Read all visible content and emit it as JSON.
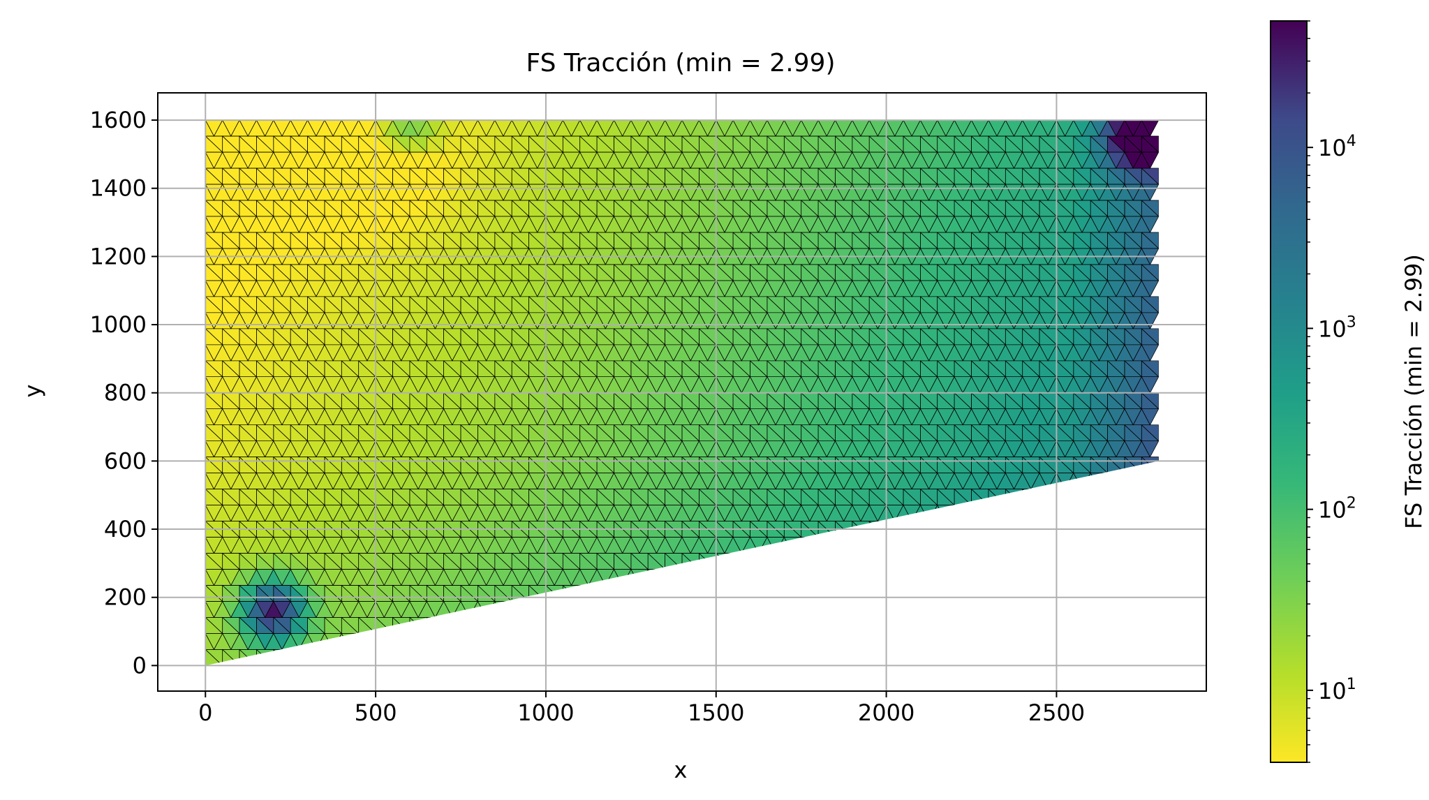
{
  "chart_data": {
    "type": "heatmap",
    "title": "FS Tracción (min = 2.99)",
    "xlabel": "x",
    "ylabel": "y",
    "xlim": [
      -140,
      2940
    ],
    "ylim": [
      -75,
      1680
    ],
    "x_ticks": [
      0,
      500,
      1000,
      1500,
      2000,
      2500
    ],
    "y_ticks": [
      0,
      200,
      400,
      600,
      800,
      1000,
      1200,
      1400,
      1600
    ],
    "x_tick_labels": [
      "0",
      "500",
      "1000",
      "1500",
      "2000",
      "2500"
    ],
    "y_tick_labels": [
      "0",
      "200",
      "400",
      "600",
      "800",
      "1000",
      "1200",
      "1400",
      "1600"
    ],
    "grid": true,
    "colormap": "viridis_r",
    "color_scale": "log",
    "domain_polygon": [
      [
        0,
        0
      ],
      [
        2800,
        600
      ],
      [
        2800,
        1600
      ],
      [
        0,
        1600
      ]
    ],
    "approx_min_value": 2.99,
    "hotspots_high": [
      {
        "x": 200,
        "y": 160,
        "value": 30000
      },
      {
        "x": 2750,
        "y": 1550,
        "value": 40000
      }
    ],
    "colorbar": {
      "label": "FS Tracción (min = 2.99)",
      "range": [
        4,
        50000
      ],
      "ticks": [
        10,
        100,
        1000,
        10000
      ],
      "tick_base": "10",
      "tick_exponents": [
        "1",
        "2",
        "3",
        "4"
      ]
    }
  }
}
